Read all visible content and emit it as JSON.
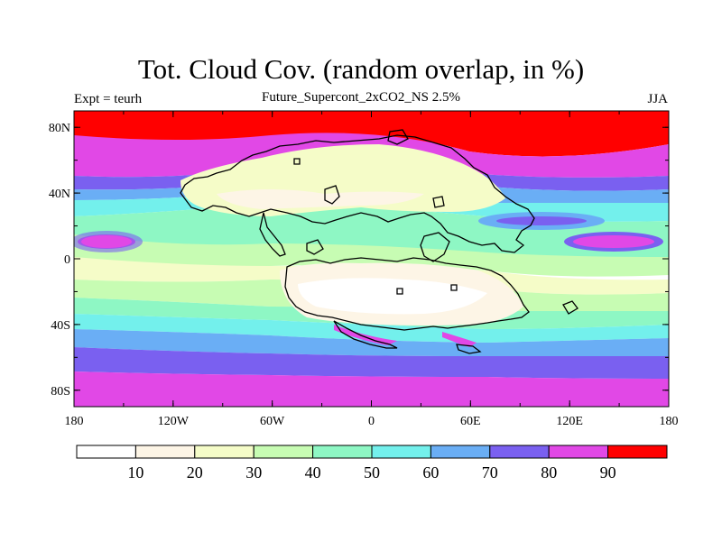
{
  "header": {
    "title": "Tot. Cloud Cov. (random overlap, in %)",
    "left_label": "Expt = teurh",
    "center_label": "Future_Supercont_2xCO2_NS 2.5%",
    "right_label": "JJA"
  },
  "axes": {
    "lon_ticks": [
      "180",
      "120W",
      "60W",
      "0",
      "60E",
      "120E",
      "180"
    ],
    "lat_ticks": [
      "80N",
      "40N",
      "0",
      "40S",
      "80S"
    ]
  },
  "colorbar": {
    "colors": [
      "#ffffff",
      "#fdf5e6",
      "#f5fcc8",
      "#c7fcb3",
      "#8ef7c4",
      "#73f0ec",
      "#6aaef5",
      "#7a60f0",
      "#e148e6",
      "#ff0000"
    ],
    "labels": [
      "10",
      "20",
      "30",
      "40",
      "50",
      "60",
      "70",
      "80",
      "90"
    ]
  },
  "map_colors": {
    "red": "#ff0000",
    "magenta": "#e148e6",
    "purple": "#7a60f0",
    "blue": "#6aaef5",
    "cyan": "#73f0ec",
    "teal": "#8ef7c4",
    "lightgreen": "#c7fcb3",
    "yellow": "#f5fcc8",
    "cream": "#fdf5e6",
    "white": "#ffffff"
  }
}
